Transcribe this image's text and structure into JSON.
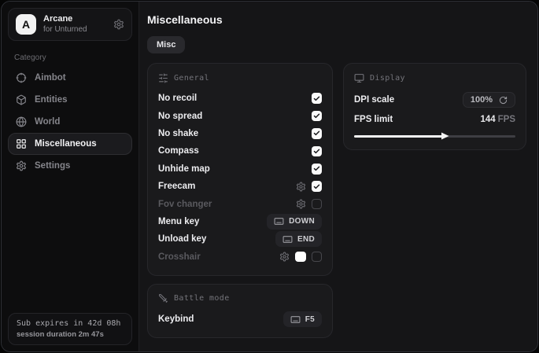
{
  "sidebar": {
    "brand": {
      "logo_letter": "A",
      "name": "Arcane",
      "subtitle": "for Unturned"
    },
    "category_label": "Category",
    "items": [
      {
        "label": "Aimbot",
        "icon": "crosshair-icon",
        "selected": false
      },
      {
        "label": "Entities",
        "icon": "box-icon",
        "selected": false
      },
      {
        "label": "World",
        "icon": "globe-icon",
        "selected": false
      },
      {
        "label": "Miscellaneous",
        "icon": "grid-icon",
        "selected": true
      },
      {
        "label": "Settings",
        "icon": "gear-icon",
        "selected": false
      }
    ],
    "footer": {
      "line1": "Sub expires in 42d 08h",
      "line2": "session duration 2m 47s"
    }
  },
  "main": {
    "title": "Miscellaneous",
    "tabs": [
      {
        "label": "Misc",
        "active": true
      }
    ],
    "panels": {
      "general": {
        "title": "General",
        "icon": "sliders-icon",
        "rows": [
          {
            "label": "No recoil",
            "type": "checkbox",
            "checked": true
          },
          {
            "label": "No spread",
            "type": "checkbox",
            "checked": true
          },
          {
            "label": "No shake",
            "type": "checkbox",
            "checked": true
          },
          {
            "label": "Compass",
            "type": "checkbox",
            "checked": true
          },
          {
            "label": "Unhide map",
            "type": "checkbox",
            "checked": true
          },
          {
            "label": "Freecam",
            "type": "checkbox",
            "checked": true,
            "has_settings": true
          },
          {
            "label": "Fov changer",
            "type": "checkbox",
            "checked": false,
            "has_settings": true,
            "dimmed": true
          },
          {
            "label": "Menu key",
            "type": "keybind",
            "key": "DOWN"
          },
          {
            "label": "Unload key",
            "type": "keybind",
            "key": "END"
          },
          {
            "label": "Crosshair",
            "type": "checkbox-color",
            "checked": false,
            "has_settings": true,
            "color": "#ffffff",
            "dimmed": true
          }
        ]
      },
      "battle": {
        "title": "Battle mode",
        "icon": "sword-icon",
        "rows": [
          {
            "label": "Keybind",
            "type": "keybind",
            "key": "F5"
          }
        ]
      },
      "display": {
        "title": "Display",
        "icon": "monitor-icon",
        "dpi": {
          "label": "DPI scale",
          "value": "100%"
        },
        "fps": {
          "label": "FPS limit",
          "value": "144",
          "unit": "FPS",
          "percent": 55
        }
      }
    }
  },
  "colors": {
    "background": "#151517",
    "sidebar": "#0d0d0e",
    "panel": "#1a1a1c",
    "accent_white": "#fafafa",
    "text_primary": "#ededf0",
    "text_muted": "#85858b"
  }
}
